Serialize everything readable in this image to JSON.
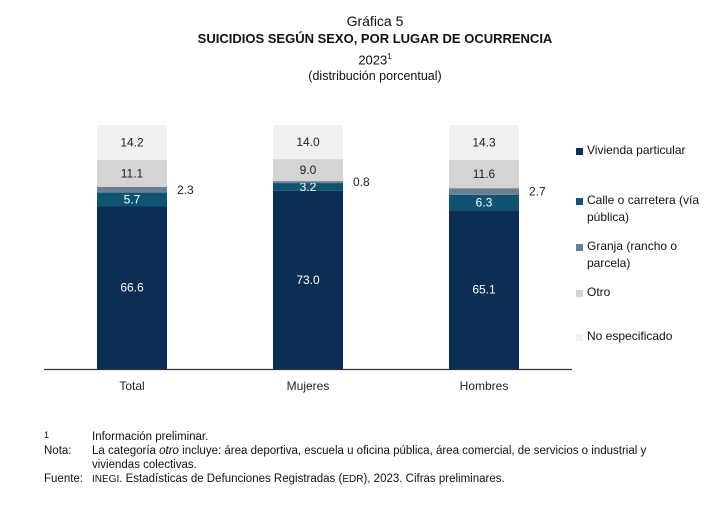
{
  "header": {
    "figure_label": "Gráfica 5",
    "title": "SUICIDIOS SEGÚN SEXO, POR LUGAR DE OCURRENCIA",
    "year": "2023",
    "year_sup": "1",
    "subtitle": "(distribución porcentual)"
  },
  "chart_data": {
    "type": "bar",
    "stacked": true,
    "categories": [
      "Total",
      "Mujeres",
      "Hombres"
    ],
    "series": [
      {
        "name": "Vivienda particular",
        "color": "#0c2e54",
        "values": [
          66.6,
          73.0,
          65.1
        ],
        "labels": [
          "66.6",
          "73.0",
          "65.1"
        ]
      },
      {
        "name": "Calle o carretera (vía pública)",
        "color": "#0e5370",
        "values": [
          5.7,
          3.2,
          6.3
        ],
        "labels": [
          "5.7",
          "3.2",
          "6.3"
        ]
      },
      {
        "name": "Granja (rancho o parcela)",
        "color": "#6a7f92",
        "values": [
          2.3,
          0.8,
          2.7
        ],
        "labels": [
          "2.3",
          "0.8",
          "2.7"
        ]
      },
      {
        "name": "Otro",
        "color": "#d4d4d4",
        "values": [
          11.1,
          9.0,
          11.6
        ],
        "labels": [
          "11.1",
          "9.0",
          "11.6"
        ]
      },
      {
        "name": "No especificado",
        "color": "#f1f1f1",
        "values": [
          14.2,
          14.0,
          14.3
        ],
        "labels": [
          "14.2",
          "14.0",
          "14.3"
        ]
      }
    ],
    "ylim": [
      0,
      100
    ]
  },
  "notes": {
    "footnote_key": "1",
    "footnote_text": "Información preliminar.",
    "nota_key": "Nota:",
    "nota_prefix": "La categoría ",
    "nota_italic": "otro",
    "nota_rest": " incluye: área deportiva, escuela u oficina pública, área comercial, de servicios o industrial y viviendas colectivas.",
    "source_key": "Fuente:",
    "source_org": "INEGI",
    "source_mid": ". Estadísticas de Defunciones Registradas (",
    "source_abbr": "EDR",
    "source_end": "), 2023. Cifras preliminares."
  }
}
